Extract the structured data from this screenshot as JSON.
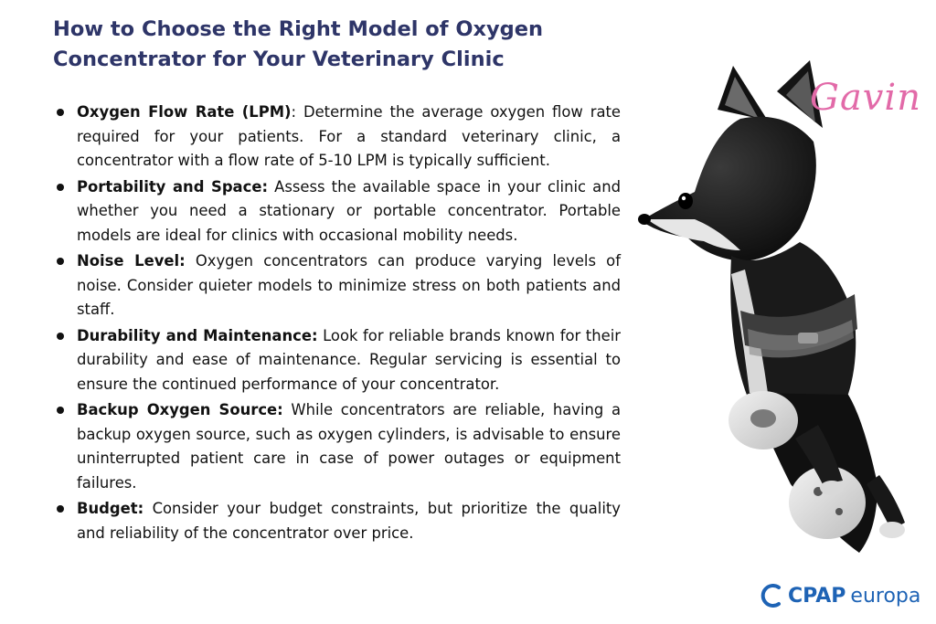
{
  "title": {
    "line1": "How to Choose the Right Model of Oxygen",
    "line2": "Concentrator for Your Veterinary Clinic"
  },
  "bullets": [
    {
      "heading": "Oxygen Flow Rate (LPM)",
      "text": ": Determine the average oxygen flow rate required for your patients. For a standard veterinary clinic, a concentrator with a flow rate of 5-10 LPM is typically sufficient."
    },
    {
      "heading": "Portability and Space:",
      "text": " Assess the available space in your clinic and whether you need a stationary or portable concentrator. Portable models are ideal for clinics with occasional mobility needs."
    },
    {
      "heading": "Noise Level:",
      "text": " Oxygen concentrators can produce varying levels of noise. Consider quieter models to minimize stress on both patients and staff."
    },
    {
      "heading": "Durability and Maintenance:",
      "text": " Look for reliable brands known for their durability and ease of maintenance. Regular servicing is essential to ensure the continued performance of your concentrator."
    },
    {
      "heading": "Backup Oxygen Source:",
      "text": " While concentrators are reliable, having a backup oxygen source, such as oxygen cylinders, is advisable to ensure uninterrupted patient care in case of power outages or equipment failures."
    },
    {
      "heading": "Budget:",
      "text": " Consider your budget constraints, but prioritize the quality and reliability of the concentrator over price."
    }
  ],
  "signature": "Gavin",
  "logo": {
    "cpap": "CPAP",
    "europa": "europa"
  },
  "colors": {
    "title": "#2e3568",
    "signature": "#e26aa8",
    "brand": "#1e63b5"
  }
}
